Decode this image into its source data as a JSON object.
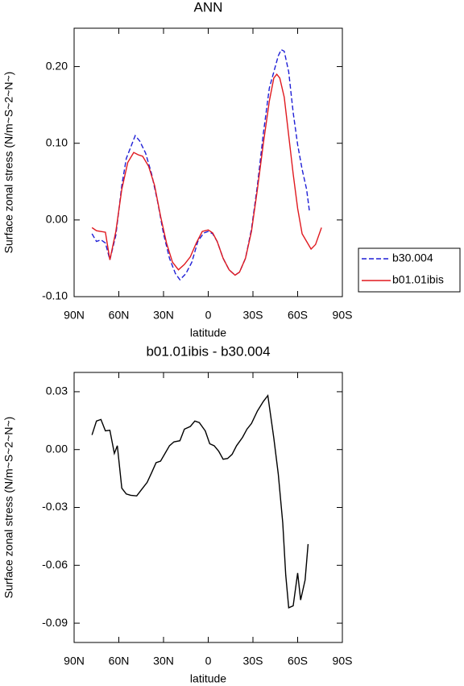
{
  "chart_data": [
    {
      "type": "line",
      "title": "ANN",
      "ylabel": "Surface zonal stress (N/m~S~2~N~)",
      "xlabel": "latitude",
      "xlim": [
        90,
        -90
      ],
      "xticks": [
        {
          "value": 90,
          "label": "90N"
        },
        {
          "value": 60,
          "label": "60N"
        },
        {
          "value": 30,
          "label": "30N"
        },
        0,
        {
          "value": -30,
          "label": "30S"
        },
        {
          "value": -60,
          "label": "60S"
        },
        {
          "value": -90,
          "label": "90S"
        }
      ],
      "ylim": [
        -0.1,
        0.25
      ],
      "yticks": [
        {
          "value": -0.1,
          "label": "-0.10"
        },
        {
          "value": 0,
          "label": "0.00"
        },
        {
          "value": 0.1,
          "label": "0.10"
        },
        {
          "value": 0.2,
          "label": "0.20"
        }
      ],
      "legend": "right",
      "series": [
        {
          "name": "b30.004",
          "color": "#1f1fd6",
          "dash": true,
          "x": [
            78,
            75,
            72,
            69,
            66,
            62,
            58,
            55,
            49,
            46,
            42,
            38,
            34,
            30,
            26,
            22,
            19,
            15,
            11,
            7,
            3,
            0,
            -3,
            -6,
            -10,
            -14,
            -18,
            -21,
            -25,
            -29,
            -33,
            -37,
            -41,
            -44,
            -47,
            -49,
            -51,
            -54,
            -57,
            -60,
            -63,
            -66,
            -68
          ],
          "values": [
            -0.018,
            -0.028,
            -0.026,
            -0.03,
            -0.052,
            -0.02,
            0.045,
            0.08,
            0.11,
            0.103,
            0.087,
            0.06,
            0.024,
            -0.018,
            -0.05,
            -0.07,
            -0.078,
            -0.07,
            -0.055,
            -0.028,
            -0.017,
            -0.015,
            -0.018,
            -0.028,
            -0.05,
            -0.065,
            -0.072,
            -0.068,
            -0.05,
            -0.012,
            0.045,
            0.113,
            0.172,
            0.193,
            0.214,
            0.222,
            0.22,
            0.193,
            0.14,
            0.098,
            0.066,
            0.04,
            0.01
          ]
        },
        {
          "name": "b01.01ibis",
          "color": "#e0191f",
          "dash": false,
          "x": [
            78,
            75,
            72,
            69,
            66,
            62,
            58,
            54,
            50,
            47,
            44,
            40,
            36,
            32,
            28,
            24,
            20,
            16,
            12,
            8,
            4,
            0,
            -3,
            -6,
            -10,
            -14,
            -18,
            -21,
            -25,
            -29,
            -33,
            -37,
            -41,
            -44,
            -46,
            -48,
            -51,
            -54,
            -57,
            -60,
            -63,
            -66,
            -69,
            -72,
            -76
          ],
          "values": [
            -0.01,
            -0.014,
            -0.015,
            -0.016,
            -0.052,
            -0.015,
            0.04,
            0.075,
            0.088,
            0.085,
            0.083,
            0.07,
            0.045,
            0.005,
            -0.03,
            -0.055,
            -0.065,
            -0.058,
            -0.048,
            -0.03,
            -0.015,
            -0.013,
            -0.017,
            -0.028,
            -0.05,
            -0.065,
            -0.072,
            -0.068,
            -0.05,
            -0.015,
            0.04,
            0.1,
            0.155,
            0.185,
            0.19,
            0.185,
            0.16,
            0.11,
            0.06,
            0.015,
            -0.018,
            -0.028,
            -0.038,
            -0.032,
            -0.01
          ]
        }
      ]
    },
    {
      "type": "line",
      "title": "b01.01ibis - b30.004",
      "ylabel": "Surface zonal stress (N/m~S~2~N~)",
      "xlabel": "latitude",
      "xlim": [
        90,
        -90
      ],
      "xticks": [
        {
          "value": 90,
          "label": "90N"
        },
        {
          "value": 60,
          "label": "60N"
        },
        {
          "value": 30,
          "label": "30N"
        },
        0,
        {
          "value": -30,
          "label": "30S"
        },
        {
          "value": -60,
          "label": "60S"
        },
        {
          "value": -90,
          "label": "90S"
        }
      ],
      "ylim": [
        -0.1,
        0.04
      ],
      "yticks": [
        {
          "value": -0.09,
          "label": "-0.09"
        },
        {
          "value": -0.06,
          "label": "-0.06"
        },
        {
          "value": -0.03,
          "label": "-0.03"
        },
        {
          "value": 0,
          "label": "0.00"
        },
        {
          "value": 0.03,
          "label": "0.03"
        }
      ],
      "series": [
        {
          "color": "#000000",
          "dash": false,
          "x": [
            78,
            75,
            72,
            69,
            66,
            63,
            61,
            58,
            55,
            52,
            48,
            45,
            41,
            38,
            35,
            32,
            29,
            26,
            23,
            19,
            16,
            12,
            9,
            6,
            2,
            -1,
            -4,
            -7,
            -10,
            -13,
            -16,
            -19,
            -23,
            -26,
            -29,
            -33,
            -37,
            -40,
            -44,
            -47,
            -50,
            -52,
            -54,
            -57,
            -60,
            -62,
            -65,
            -67
          ],
          "values": [
            0.0076,
            0.0148,
            0.0156,
            0.0097,
            0.01,
            -0.002,
            0.002,
            -0.02,
            -0.023,
            -0.0237,
            -0.024,
            -0.021,
            -0.017,
            -0.012,
            -0.0068,
            -0.006,
            -0.002,
            0.002,
            0.004,
            0.0046,
            0.0106,
            0.012,
            0.0148,
            0.014,
            0.0097,
            0.003,
            0.002,
            -0.0008,
            -0.005,
            -0.0046,
            -0.0025,
            0.002,
            0.0063,
            0.0106,
            0.0135,
            0.02,
            0.025,
            0.028,
            0.006,
            -0.0127,
            -0.038,
            -0.065,
            -0.082,
            -0.081,
            -0.064,
            -0.078,
            -0.0676,
            -0.049
          ]
        }
      ]
    }
  ]
}
